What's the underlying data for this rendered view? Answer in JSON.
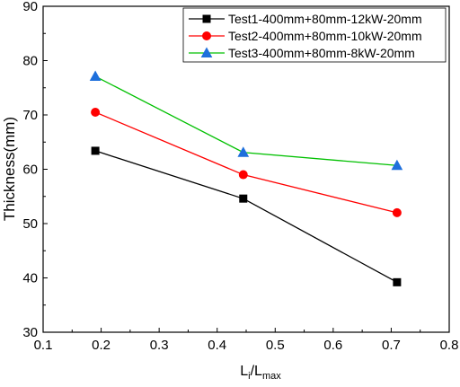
{
  "chart_data": {
    "type": "line",
    "xlabel": "L",
    "xlabel_sub1": "i",
    "xlabel_sep": "/L",
    "xlabel_sub2": "max",
    "ylabel": "Thickness(mm)",
    "xlim": [
      0.1,
      0.8
    ],
    "ylim": [
      30,
      90
    ],
    "xticks": [
      "0.1",
      "0.2",
      "0.3",
      "0.4",
      "0.5",
      "0.6",
      "0.7",
      "0.8"
    ],
    "yticks": [
      "30",
      "40",
      "50",
      "60",
      "70",
      "80",
      "90"
    ],
    "grid": false,
    "legend_position": "top-right",
    "series": [
      {
        "name": "Test1-400mm+80mm-12kW-20mm",
        "color": "#000000",
        "marker": "square",
        "x": [
          0.19,
          0.445,
          0.71
        ],
        "y": [
          63.4,
          54.6,
          39.2
        ]
      },
      {
        "name": "Test2-400mm+80mm-10kW-20mm",
        "color": "#ff0000",
        "marker": "circle",
        "x": [
          0.19,
          0.445,
          0.71
        ],
        "y": [
          70.5,
          59.0,
          52.0
        ]
      },
      {
        "name": "Test3-400mm+80mm-8kW-20mm",
        "color": "#00c000",
        "marker_color": "#1e6fdc",
        "marker": "triangle",
        "x": [
          0.19,
          0.445,
          0.71
        ],
        "y": [
          77.1,
          63.1,
          60.7
        ]
      }
    ]
  }
}
